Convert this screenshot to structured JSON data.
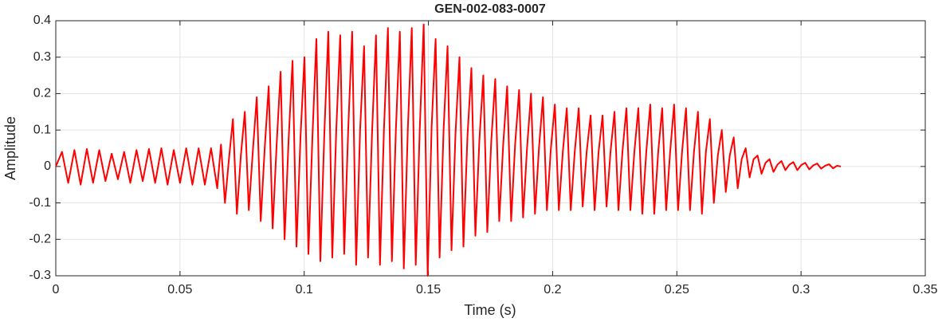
{
  "chart_data": {
    "type": "line",
    "title": "GEN-002-083-0007",
    "xlabel": "Time (s)",
    "ylabel": "Amplitude",
    "color": "#ff0000",
    "grid": true,
    "xlim": [
      0,
      0.35
    ],
    "xticks": [
      0,
      0.05,
      0.1,
      0.15,
      0.2,
      0.25,
      0.3,
      0.35
    ],
    "ylim": [
      -0.3,
      0.4
    ],
    "yticks": [
      -0.3,
      -0.2,
      -0.1,
      0,
      0.1,
      0.2,
      0.3,
      0.4
    ],
    "x": [
      0,
      0.0025,
      0.005,
      0.0075,
      0.01,
      0.0125,
      0.015,
      0.0175,
      0.02,
      0.0225,
      0.025,
      0.0275,
      0.03,
      0.0325,
      0.035,
      0.0375,
      0.04,
      0.0425,
      0.045,
      0.0475,
      0.05,
      0.0525,
      0.055,
      0.0575,
      0.06,
      0.0625,
      0.065,
      0.0665,
      0.0681,
      0.0697,
      0.0713,
      0.0729,
      0.0745,
      0.0761,
      0.0777,
      0.0793,
      0.0809,
      0.0825,
      0.0841,
      0.0857,
      0.0873,
      0.0889,
      0.0905,
      0.0921,
      0.0937,
      0.0953,
      0.0969,
      0.0985,
      0.1001,
      0.1017,
      0.1033,
      0.1049,
      0.1065,
      0.1081,
      0.1097,
      0.1113,
      0.1129,
      0.1145,
      0.1161,
      0.1177,
      0.1193,
      0.1209,
      0.1225,
      0.1241,
      0.1257,
      0.1273,
      0.1289,
      0.1305,
      0.1321,
      0.1337,
      0.1353,
      0.1369,
      0.1385,
      0.1401,
      0.1417,
      0.1433,
      0.1449,
      0.1465,
      0.1481,
      0.1497,
      0.1513,
      0.1529,
      0.1545,
      0.1561,
      0.1577,
      0.1593,
      0.1609,
      0.1625,
      0.1641,
      0.1657,
      0.1673,
      0.1689,
      0.1705,
      0.1721,
      0.1737,
      0.1753,
      0.1769,
      0.1785,
      0.1801,
      0.1817,
      0.1833,
      0.1849,
      0.1865,
      0.1881,
      0.1897,
      0.1913,
      0.1929,
      0.1945,
      0.1961,
      0.1977,
      0.1993,
      0.2009,
      0.2025,
      0.2041,
      0.2057,
      0.2073,
      0.2089,
      0.2105,
      0.2121,
      0.2137,
      0.2153,
      0.2169,
      0.2185,
      0.2201,
      0.2217,
      0.2233,
      0.2249,
      0.2265,
      0.2281,
      0.2297,
      0.2313,
      0.2329,
      0.2345,
      0.2361,
      0.2377,
      0.2393,
      0.2409,
      0.2425,
      0.2441,
      0.2457,
      0.2473,
      0.2489,
      0.2505,
      0.2521,
      0.2537,
      0.2553,
      0.2569,
      0.2585,
      0.2601,
      0.2617,
      0.2633,
      0.2649,
      0.2665,
      0.2681,
      0.2697,
      0.2713,
      0.2729,
      0.2745,
      0.2761,
      0.2777,
      0.2793,
      0.2809,
      0.2825,
      0.2841,
      0.2857,
      0.2873,
      0.2889,
      0.2905,
      0.2921,
      0.2937,
      0.2953,
      0.2969,
      0.2985,
      0.3001,
      0.3017,
      0.3033,
      0.3049,
      0.3065,
      0.3081,
      0.3097,
      0.3113,
      0.3129,
      0.3145,
      0.316
    ],
    "values": [
      0,
      0.04,
      -0.045,
      0.045,
      -0.05,
      0.048,
      -0.045,
      0.045,
      -0.04,
      0.035,
      -0.035,
      0.04,
      -0.045,
      0.045,
      -0.04,
      0.048,
      -0.045,
      0.05,
      -0.05,
      0.045,
      -0.045,
      0.05,
      -0.05,
      0.05,
      -0.05,
      0.05,
      -0.06,
      0.06,
      -0.1,
      0.02,
      0.13,
      -0.13,
      0.03,
      0.15,
      -0.12,
      0.04,
      0.19,
      -0.15,
      0.05,
      0.22,
      -0.17,
      0.06,
      0.26,
      -0.2,
      0.07,
      0.29,
      -0.22,
      0.08,
      0.3,
      -0.24,
      0.08,
      0.35,
      -0.26,
      0.09,
      0.37,
      -0.25,
      0.1,
      0.36,
      -0.24,
      0.1,
      0.37,
      -0.27,
      0.1,
      0.33,
      -0.25,
      0.09,
      0.36,
      -0.27,
      0.1,
      0.38,
      -0.26,
      0.1,
      0.37,
      -0.28,
      0.1,
      0.38,
      -0.27,
      0.1,
      0.39,
      -0.3,
      0.11,
      0.35,
      -0.25,
      0.1,
      0.33,
      -0.23,
      0.09,
      0.3,
      -0.22,
      0.08,
      0.27,
      -0.19,
      0.07,
      0.25,
      -0.18,
      0.07,
      0.24,
      -0.15,
      0.06,
      0.22,
      -0.15,
      0.06,
      0.21,
      -0.14,
      0.05,
      0.2,
      -0.13,
      0.05,
      0.19,
      -0.12,
      0.05,
      0.17,
      -0.12,
      0.04,
      0.16,
      -0.12,
      0.04,
      0.16,
      -0.11,
      0.04,
      0.14,
      -0.12,
      0.04,
      0.14,
      -0.11,
      0.04,
      0.15,
      -0.12,
      0.04,
      0.16,
      -0.12,
      0.04,
      0.16,
      -0.13,
      0.04,
      0.17,
      -0.13,
      0.04,
      0.16,
      -0.12,
      0.04,
      0.17,
      -0.12,
      0.04,
      0.16,
      -0.12,
      0.04,
      0.15,
      -0.13,
      0.04,
      0.13,
      -0.1,
      0.03,
      0.1,
      -0.07,
      0.03,
      0.08,
      -0.06,
      0.02,
      0.05,
      -0.03,
      0.02,
      0.03,
      -0.02,
      0.01,
      0.02,
      -0.015,
      0.005,
      0.015,
      -0.01,
      0.005,
      0.012,
      -0.01,
      0.004,
      0.01,
      -0.008,
      0.003,
      0.008,
      -0.006,
      0.002,
      0.006,
      -0.005,
      0.002,
      0
    ]
  }
}
